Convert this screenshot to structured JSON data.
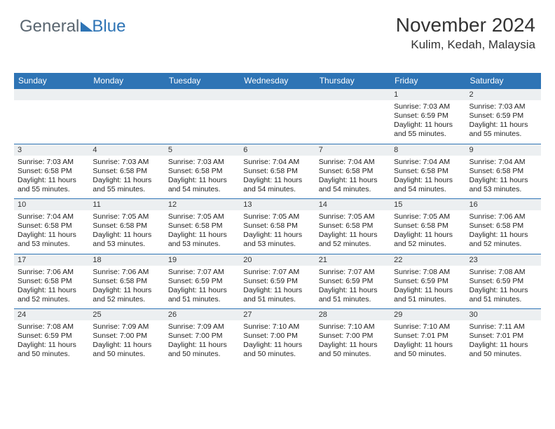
{
  "logo": {
    "text1": "General",
    "text2": "Blue"
  },
  "header": {
    "month_title": "November 2024",
    "location": "Kulim, Kedah, Malaysia"
  },
  "colors": {
    "accent": "#2e74b5",
    "daybar": "#eceff1"
  },
  "day_names": [
    "Sunday",
    "Monday",
    "Tuesday",
    "Wednesday",
    "Thursday",
    "Friday",
    "Saturday"
  ],
  "weeks": [
    [
      {
        "n": "",
        "sunrise": "",
        "sunset": "",
        "daylight": ""
      },
      {
        "n": "",
        "sunrise": "",
        "sunset": "",
        "daylight": ""
      },
      {
        "n": "",
        "sunrise": "",
        "sunset": "",
        "daylight": ""
      },
      {
        "n": "",
        "sunrise": "",
        "sunset": "",
        "daylight": ""
      },
      {
        "n": "",
        "sunrise": "",
        "sunset": "",
        "daylight": ""
      },
      {
        "n": "1",
        "sunrise": "Sunrise: 7:03 AM",
        "sunset": "Sunset: 6:59 PM",
        "daylight": "Daylight: 11 hours and 55 minutes."
      },
      {
        "n": "2",
        "sunrise": "Sunrise: 7:03 AM",
        "sunset": "Sunset: 6:59 PM",
        "daylight": "Daylight: 11 hours and 55 minutes."
      }
    ],
    [
      {
        "n": "3",
        "sunrise": "Sunrise: 7:03 AM",
        "sunset": "Sunset: 6:58 PM",
        "daylight": "Daylight: 11 hours and 55 minutes."
      },
      {
        "n": "4",
        "sunrise": "Sunrise: 7:03 AM",
        "sunset": "Sunset: 6:58 PM",
        "daylight": "Daylight: 11 hours and 55 minutes."
      },
      {
        "n": "5",
        "sunrise": "Sunrise: 7:03 AM",
        "sunset": "Sunset: 6:58 PM",
        "daylight": "Daylight: 11 hours and 54 minutes."
      },
      {
        "n": "6",
        "sunrise": "Sunrise: 7:04 AM",
        "sunset": "Sunset: 6:58 PM",
        "daylight": "Daylight: 11 hours and 54 minutes."
      },
      {
        "n": "7",
        "sunrise": "Sunrise: 7:04 AM",
        "sunset": "Sunset: 6:58 PM",
        "daylight": "Daylight: 11 hours and 54 minutes."
      },
      {
        "n": "8",
        "sunrise": "Sunrise: 7:04 AM",
        "sunset": "Sunset: 6:58 PM",
        "daylight": "Daylight: 11 hours and 54 minutes."
      },
      {
        "n": "9",
        "sunrise": "Sunrise: 7:04 AM",
        "sunset": "Sunset: 6:58 PM",
        "daylight": "Daylight: 11 hours and 53 minutes."
      }
    ],
    [
      {
        "n": "10",
        "sunrise": "Sunrise: 7:04 AM",
        "sunset": "Sunset: 6:58 PM",
        "daylight": "Daylight: 11 hours and 53 minutes."
      },
      {
        "n": "11",
        "sunrise": "Sunrise: 7:05 AM",
        "sunset": "Sunset: 6:58 PM",
        "daylight": "Daylight: 11 hours and 53 minutes."
      },
      {
        "n": "12",
        "sunrise": "Sunrise: 7:05 AM",
        "sunset": "Sunset: 6:58 PM",
        "daylight": "Daylight: 11 hours and 53 minutes."
      },
      {
        "n": "13",
        "sunrise": "Sunrise: 7:05 AM",
        "sunset": "Sunset: 6:58 PM",
        "daylight": "Daylight: 11 hours and 53 minutes."
      },
      {
        "n": "14",
        "sunrise": "Sunrise: 7:05 AM",
        "sunset": "Sunset: 6:58 PM",
        "daylight": "Daylight: 11 hours and 52 minutes."
      },
      {
        "n": "15",
        "sunrise": "Sunrise: 7:05 AM",
        "sunset": "Sunset: 6:58 PM",
        "daylight": "Daylight: 11 hours and 52 minutes."
      },
      {
        "n": "16",
        "sunrise": "Sunrise: 7:06 AM",
        "sunset": "Sunset: 6:58 PM",
        "daylight": "Daylight: 11 hours and 52 minutes."
      }
    ],
    [
      {
        "n": "17",
        "sunrise": "Sunrise: 7:06 AM",
        "sunset": "Sunset: 6:58 PM",
        "daylight": "Daylight: 11 hours and 52 minutes."
      },
      {
        "n": "18",
        "sunrise": "Sunrise: 7:06 AM",
        "sunset": "Sunset: 6:58 PM",
        "daylight": "Daylight: 11 hours and 52 minutes."
      },
      {
        "n": "19",
        "sunrise": "Sunrise: 7:07 AM",
        "sunset": "Sunset: 6:59 PM",
        "daylight": "Daylight: 11 hours and 51 minutes."
      },
      {
        "n": "20",
        "sunrise": "Sunrise: 7:07 AM",
        "sunset": "Sunset: 6:59 PM",
        "daylight": "Daylight: 11 hours and 51 minutes."
      },
      {
        "n": "21",
        "sunrise": "Sunrise: 7:07 AM",
        "sunset": "Sunset: 6:59 PM",
        "daylight": "Daylight: 11 hours and 51 minutes."
      },
      {
        "n": "22",
        "sunrise": "Sunrise: 7:08 AM",
        "sunset": "Sunset: 6:59 PM",
        "daylight": "Daylight: 11 hours and 51 minutes."
      },
      {
        "n": "23",
        "sunrise": "Sunrise: 7:08 AM",
        "sunset": "Sunset: 6:59 PM",
        "daylight": "Daylight: 11 hours and 51 minutes."
      }
    ],
    [
      {
        "n": "24",
        "sunrise": "Sunrise: 7:08 AM",
        "sunset": "Sunset: 6:59 PM",
        "daylight": "Daylight: 11 hours and 50 minutes."
      },
      {
        "n": "25",
        "sunrise": "Sunrise: 7:09 AM",
        "sunset": "Sunset: 7:00 PM",
        "daylight": "Daylight: 11 hours and 50 minutes."
      },
      {
        "n": "26",
        "sunrise": "Sunrise: 7:09 AM",
        "sunset": "Sunset: 7:00 PM",
        "daylight": "Daylight: 11 hours and 50 minutes."
      },
      {
        "n": "27",
        "sunrise": "Sunrise: 7:10 AM",
        "sunset": "Sunset: 7:00 PM",
        "daylight": "Daylight: 11 hours and 50 minutes."
      },
      {
        "n": "28",
        "sunrise": "Sunrise: 7:10 AM",
        "sunset": "Sunset: 7:00 PM",
        "daylight": "Daylight: 11 hours and 50 minutes."
      },
      {
        "n": "29",
        "sunrise": "Sunrise: 7:10 AM",
        "sunset": "Sunset: 7:01 PM",
        "daylight": "Daylight: 11 hours and 50 minutes."
      },
      {
        "n": "30",
        "sunrise": "Sunrise: 7:11 AM",
        "sunset": "Sunset: 7:01 PM",
        "daylight": "Daylight: 11 hours and 50 minutes."
      }
    ]
  ]
}
